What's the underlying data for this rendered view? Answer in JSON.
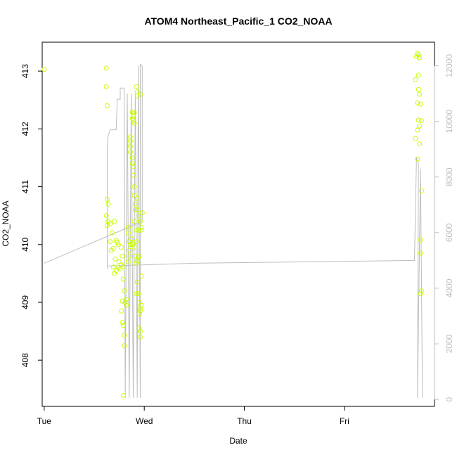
{
  "chart_data": {
    "type": "scatter",
    "title": "ATOM4 Northeast_Pacific_1 CO2_NOAA",
    "xlabel": "Date",
    "ylabel": "CO2_NOAA",
    "x_ticks": [
      "Tue",
      "Wed",
      "Thu",
      "Fri"
    ],
    "x_range": [
      -0.02,
      3.9
    ],
    "y_ticks": [
      408,
      409,
      410,
      411,
      412,
      413
    ],
    "ylim": [
      407.2,
      413.5
    ],
    "y2_ticks": [
      0,
      2000,
      4000,
      6000,
      8000,
      10000,
      12000
    ],
    "y2lim": [
      -250,
      12850
    ],
    "grid": false,
    "colors": {
      "points": "#c6ff00",
      "line": "#bdbdbd",
      "axis": "#000000",
      "right_axis": "#bdbdbd"
    },
    "series": [
      {
        "type": "scatter",
        "axis": "left",
        "points": [
          [
            0.0,
            413.03
          ],
          [
            0.62,
            413.05
          ],
          [
            0.62,
            412.73
          ],
          [
            0.63,
            412.4
          ],
          [
            0.63,
            410.78
          ],
          [
            0.64,
            410.7
          ],
          [
            0.62,
            410.5
          ],
          [
            0.64,
            410.4
          ],
          [
            0.63,
            410.33
          ],
          [
            0.66,
            410.36
          ],
          [
            0.68,
            410.2
          ],
          [
            0.7,
            410.4
          ],
          [
            0.66,
            410.05
          ],
          [
            0.69,
            409.93
          ],
          [
            0.67,
            409.9
          ],
          [
            0.71,
            409.75
          ],
          [
            0.72,
            410.07
          ],
          [
            0.73,
            410.04
          ],
          [
            0.74,
            410.0
          ],
          [
            0.69,
            409.61
          ],
          [
            0.7,
            409.5
          ],
          [
            0.72,
            409.55
          ],
          [
            0.74,
            409.6
          ],
          [
            0.75,
            409.7
          ],
          [
            0.76,
            409.58
          ],
          [
            0.77,
            409.65
          ],
          [
            0.77,
            409.95
          ],
          [
            0.78,
            409.8
          ],
          [
            0.79,
            409.62
          ],
          [
            0.79,
            409.4
          ],
          [
            0.8,
            409.2
          ],
          [
            0.81,
            409.0
          ],
          [
            0.78,
            409.02
          ],
          [
            0.77,
            408.85
          ],
          [
            0.78,
            408.65
          ],
          [
            0.79,
            408.6
          ],
          [
            0.8,
            408.25
          ],
          [
            0.8,
            408.43
          ],
          [
            0.79,
            407.39
          ],
          [
            0.82,
            409.05
          ],
          [
            0.82,
            408.95
          ],
          [
            0.84,
            409.7
          ],
          [
            0.85,
            409.8
          ],
          [
            0.85,
            409.9
          ],
          [
            0.85,
            410.05
          ],
          [
            0.84,
            410.2
          ],
          [
            0.84,
            410.3
          ],
          [
            0.86,
            410.0
          ],
          [
            0.87,
            410.1
          ],
          [
            0.88,
            410.0
          ],
          [
            0.89,
            410.02
          ],
          [
            0.9,
            409.95
          ],
          [
            0.91,
            409.8
          ],
          [
            0.92,
            409.68
          ],
          [
            0.93,
            409.72
          ],
          [
            0.94,
            409.77
          ],
          [
            0.95,
            409.8
          ],
          [
            0.92,
            410.05
          ],
          [
            0.92,
            410.25
          ],
          [
            0.9,
            410.4
          ],
          [
            0.94,
            410.25
          ],
          [
            0.95,
            410.5
          ],
          [
            0.86,
            411.79
          ],
          [
            0.86,
            411.7
          ],
          [
            0.86,
            411.6
          ],
          [
            0.86,
            411.86
          ],
          [
            0.88,
            411.5
          ],
          [
            0.88,
            411.4
          ],
          [
            0.89,
            411.35
          ],
          [
            0.89,
            411.2
          ],
          [
            0.9,
            411.0
          ],
          [
            0.9,
            410.85
          ],
          [
            0.91,
            410.7
          ],
          [
            0.91,
            410.6
          ],
          [
            0.93,
            410.8
          ],
          [
            0.93,
            410.6
          ],
          [
            0.96,
            410.4
          ],
          [
            0.88,
            412.29
          ],
          [
            0.89,
            412.23
          ],
          [
            0.89,
            412.15
          ],
          [
            0.88,
            412.18
          ],
          [
            0.9,
            412.28
          ],
          [
            0.9,
            412.1
          ],
          [
            0.92,
            412.73
          ],
          [
            0.93,
            412.64
          ],
          [
            0.93,
            412.57
          ],
          [
            0.96,
            412.6
          ],
          [
            0.92,
            409.15
          ],
          [
            0.93,
            409.35
          ],
          [
            0.94,
            409.15
          ],
          [
            0.95,
            409.0
          ],
          [
            0.96,
            408.9
          ],
          [
            0.96,
            408.85
          ],
          [
            0.95,
            408.8
          ],
          [
            0.97,
            408.95
          ],
          [
            0.95,
            408.55
          ],
          [
            0.96,
            408.5
          ],
          [
            0.96,
            408.4
          ],
          [
            0.97,
            410.25
          ],
          [
            0.97,
            410.3
          ],
          [
            0.98,
            410.55
          ],
          [
            0.97,
            409.45
          ],
          [
            3.72,
            413.25
          ],
          [
            3.73,
            413.3
          ],
          [
            3.74,
            413.28
          ],
          [
            3.75,
            413.23
          ],
          [
            3.74,
            412.93
          ],
          [
            3.71,
            412.85
          ],
          [
            3.74,
            412.68
          ],
          [
            3.75,
            412.6
          ],
          [
            3.73,
            412.45
          ],
          [
            3.76,
            412.43
          ],
          [
            3.74,
            412.15
          ],
          [
            3.75,
            412.05
          ],
          [
            3.73,
            411.98
          ],
          [
            3.77,
            412.14
          ],
          [
            3.71,
            411.83
          ],
          [
            3.75,
            411.74
          ],
          [
            3.73,
            411.48
          ],
          [
            3.77,
            410.93
          ],
          [
            3.76,
            410.08
          ],
          [
            3.76,
            409.85
          ],
          [
            3.77,
            409.2
          ],
          [
            3.76,
            409.15
          ]
        ]
      },
      {
        "type": "line",
        "axis": "right",
        "points": [
          [
            0.0,
            4900
          ],
          [
            0.98,
            6400
          ],
          [
            0.98,
            12000
          ],
          [
            0.96,
            12050
          ],
          [
            0.96,
            60
          ],
          [
            0.94,
            12000
          ],
          [
            0.93,
            60
          ],
          [
            0.91,
            11000
          ],
          [
            0.89,
            60
          ],
          [
            0.87,
            11000
          ],
          [
            0.85,
            60
          ],
          [
            0.83,
            11000
          ],
          [
            0.81,
            60
          ],
          [
            0.8,
            11200
          ],
          [
            0.76,
            11200
          ],
          [
            0.76,
            10800
          ],
          [
            0.73,
            10800
          ],
          [
            0.72,
            9700
          ],
          [
            0.66,
            9700
          ],
          [
            0.64,
            9500
          ],
          [
            0.63,
            9000
          ],
          [
            0.63,
            4700
          ],
          [
            0.63,
            4800
          ],
          [
            1.5,
            4900
          ],
          [
            3.7,
            5000
          ],
          [
            3.72,
            8700
          ],
          [
            3.74,
            8500
          ],
          [
            3.73,
            60
          ],
          [
            3.76,
            8300
          ],
          [
            3.78,
            60
          ]
        ]
      }
    ]
  }
}
